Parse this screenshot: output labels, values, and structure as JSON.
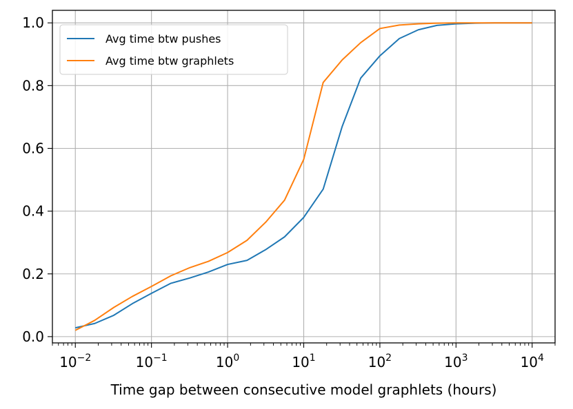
{
  "chart_data": {
    "type": "line",
    "title": "",
    "xlabel": "Time gap between consecutive model graphlets (hours)",
    "ylabel": "",
    "xscale": "log",
    "xlim": [
      0.005,
      20000
    ],
    "ylim": [
      -0.02,
      1.04
    ],
    "grid": true,
    "legend_position": "upper-left",
    "x_ticks": [
      {
        "value": 0.01,
        "base": "10",
        "exp": "−2"
      },
      {
        "value": 0.1,
        "base": "10",
        "exp": "−1"
      },
      {
        "value": 1,
        "base": "10",
        "exp": "0"
      },
      {
        "value": 10,
        "base": "10",
        "exp": "1"
      },
      {
        "value": 100,
        "base": "10",
        "exp": "2"
      },
      {
        "value": 1000,
        "base": "10",
        "exp": "3"
      },
      {
        "value": 10000,
        "base": "10",
        "exp": "4"
      }
    ],
    "y_ticks": [
      {
        "value": 0.0,
        "label": "0.0"
      },
      {
        "value": 0.2,
        "label": "0.2"
      },
      {
        "value": 0.4,
        "label": "0.4"
      },
      {
        "value": 0.6,
        "label": "0.6"
      },
      {
        "value": 0.8,
        "label": "0.8"
      },
      {
        "value": 1.0,
        "label": "1.0"
      }
    ],
    "series": [
      {
        "name": "Avg time btw pushes",
        "color": "#1f77b4",
        "x": [
          0.01,
          0.018,
          0.032,
          0.056,
          0.1,
          0.18,
          0.32,
          0.56,
          1.0,
          1.8,
          3.2,
          5.6,
          10,
          18,
          32,
          56,
          100,
          180,
          320,
          560,
          1000,
          1800,
          3200,
          5600,
          10000
        ],
        "y": [
          0.028,
          0.042,
          0.068,
          0.105,
          0.138,
          0.17,
          0.187,
          0.206,
          0.23,
          0.243,
          0.278,
          0.318,
          0.38,
          0.47,
          0.67,
          0.824,
          0.895,
          0.95,
          0.978,
          0.992,
          0.997,
          0.999,
          1.0,
          1.0,
          1.0
        ]
      },
      {
        "name": "Avg time btw graphlets",
        "color": "#ff7f0e",
        "x": [
          0.01,
          0.018,
          0.032,
          0.056,
          0.1,
          0.18,
          0.32,
          0.56,
          1.0,
          1.8,
          3.2,
          5.6,
          10,
          18,
          32,
          56,
          100,
          180,
          320,
          560,
          1000,
          1800,
          3200,
          5600,
          10000
        ],
        "y": [
          0.02,
          0.052,
          0.093,
          0.128,
          0.16,
          0.194,
          0.22,
          0.24,
          0.268,
          0.307,
          0.366,
          0.435,
          0.565,
          0.81,
          0.882,
          0.937,
          0.982,
          0.993,
          0.997,
          0.999,
          1.0,
          1.0,
          1.0,
          1.0,
          1.0
        ]
      }
    ]
  }
}
